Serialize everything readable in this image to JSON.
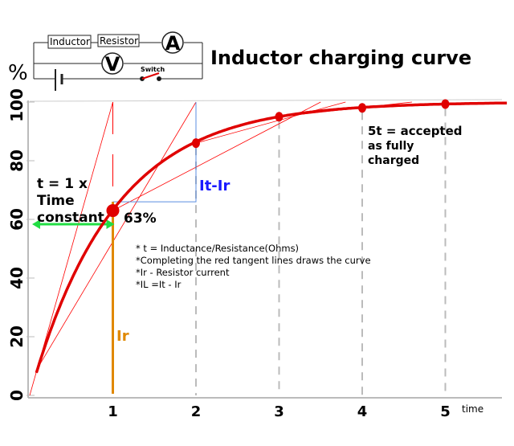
{
  "circuit": {
    "inductor_label": "Inductor",
    "resistor_label": "Resistor",
    "ammeter_label": "A",
    "voltmeter_label": "V",
    "switch_label": "Switch"
  },
  "colors": {
    "curve": "#e00000",
    "tangent": "#ff0000",
    "blue": "#1a1aff",
    "orange": "#e08800",
    "green": "#22dd44"
  },
  "chart_data": {
    "type": "line",
    "title": "Inductor charging curve",
    "xlabel": "time",
    "ylabel": "%",
    "xlim": [
      0,
      5.8
    ],
    "ylim": [
      0,
      100
    ],
    "x_ticks": [
      "1",
      "2",
      "3",
      "4",
      "5"
    ],
    "y_ticks": [
      "0",
      "20",
      "40",
      "60",
      "80",
      "100"
    ],
    "grid": "dashed vertical lines at 2, 3, 4, 5",
    "series": [
      {
        "x": [
          0,
          1,
          2,
          3,
          4,
          5
        ],
        "y": [
          0,
          63,
          86,
          95,
          98,
          99.3
        ]
      }
    ],
    "annotations": {
      "time_constant": "t = 1 x Time constant",
      "pct63": "63%",
      "it_ir": "It-Ir",
      "ir": "Ir",
      "five_t": "5t = accepted as fully charged",
      "five_t_lines": [
        "5t = accepted",
        "as fully",
        "charged"
      ],
      "tc_lines": [
        "t = 1 x",
        "Time",
        "constant"
      ],
      "notes": [
        "* t = Inductance/Resistance(Ohms)",
        "*Completing the red tangent lines draws the curve",
        "*Ir - Resistor current",
        "*IL =It - Ir"
      ]
    }
  }
}
